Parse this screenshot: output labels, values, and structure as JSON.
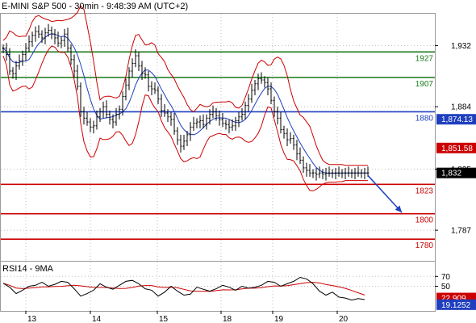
{
  "chart_data": [
    {
      "type": "line",
      "title": "E-MINI S&P 500 - 30min - 9:48:39 AM (UTC+2)",
      "x_tick_labels": [
        "13",
        "14",
        "15",
        "18",
        "19",
        "20"
      ],
      "y_tick_labels": [
        "1,932",
        "1,884",
        "1,835",
        "1,787"
      ],
      "ylim": [
        1763,
        1957
      ],
      "series": [
        {
          "role": "price",
          "color": "#000000",
          "x": [
            0,
            4,
            8,
            12,
            16,
            20,
            24,
            28,
            32,
            36,
            40,
            44,
            48,
            52,
            56,
            60,
            64,
            68,
            72,
            76,
            80,
            84,
            88,
            92,
            96,
            100,
            104,
            108,
            112,
            116,
            120,
            124,
            128,
            132,
            136,
            140,
            144,
            148,
            152,
            156,
            160,
            164,
            168,
            172,
            176,
            180,
            184,
            188,
            192,
            196,
            200,
            204,
            208,
            212,
            216,
            220,
            224,
            228,
            232,
            236,
            240,
            244,
            248,
            252,
            256,
            260,
            264,
            268,
            272,
            276,
            280,
            284,
            288,
            292,
            296,
            300,
            304,
            308,
            312,
            316,
            320,
            324,
            328,
            332,
            336,
            340,
            344,
            348,
            352,
            356,
            360,
            364,
            368,
            372,
            376,
            380,
            384,
            388,
            392,
            396,
            400,
            404,
            408,
            412,
            416,
            420,
            424,
            428,
            432,
            436,
            440,
            444,
            448,
            452
          ],
          "values": [
            1930,
            1925,
            1912,
            1910,
            1916,
            1920,
            1925,
            1930,
            1935,
            1940,
            1943,
            1941,
            1938,
            1942,
            1944,
            1941,
            1938,
            1934,
            1936,
            1941,
            1930,
            1921,
            1912,
            1900,
            1880,
            1875,
            1872,
            1868,
            1869,
            1876,
            1880,
            1884,
            1878,
            1874,
            1872,
            1878,
            1882,
            1892,
            1901,
            1912,
            1918,
            1924,
            1916,
            1910,
            1909,
            1900,
            1898,
            1897,
            1890,
            1881,
            1879,
            1876,
            1874,
            1865,
            1858,
            1853,
            1857,
            1862,
            1868,
            1871,
            1872,
            1873,
            1870,
            1875,
            1878,
            1880,
            1877,
            1874,
            1871,
            1870,
            1868,
            1869,
            1873,
            1876,
            1878,
            1885,
            1890,
            1897,
            1902,
            1906,
            1905,
            1903,
            1898,
            1889,
            1880,
            1875,
            1866,
            1863,
            1858,
            1859,
            1854,
            1847,
            1842,
            1836,
            1834,
            1832,
            1832,
            1831,
            1832,
            1831,
            1832,
            1832,
            1832,
            1832,
            1832,
            1832,
            1832,
            1832,
            1832,
            1832,
            1832,
            1832,
            1832,
            1832
          ]
        },
        {
          "role": "upper-bollinger-band",
          "color": "#cc0000"
        },
        {
          "role": "lower-bollinger-band",
          "color": "#cc0000"
        },
        {
          "role": "moving-average",
          "color": "#1f3fbf"
        }
      ],
      "levels": [
        {
          "label": "1927",
          "value": 1927,
          "color": "#1a7a1a"
        },
        {
          "label": "1907",
          "value": 1907,
          "color": "#1a7a1a"
        },
        {
          "label": "1880",
          "value": 1880,
          "color": "#1f3fbf"
        },
        {
          "label": "1823",
          "value": 1823,
          "color": "#cc0000"
        },
        {
          "label": "1800",
          "value": 1800,
          "color": "#cc0000"
        },
        {
          "label": "1780",
          "value": 1780,
          "color": "#cc0000"
        }
      ],
      "price_tags": [
        {
          "label": "1,874.13",
          "value": 1874.13,
          "color": "#1f3fbf"
        },
        {
          "label": "1,851.58",
          "value": 1851.58,
          "color": "#cc0000"
        },
        {
          "label": "1,832",
          "value": 1832,
          "color": "#000000"
        }
      ],
      "arrow": {
        "color": "#1f3fbf",
        "from": {
          "x": 452,
          "y": 1830
        },
        "to": {
          "x": 498,
          "y": 1801
        }
      }
    },
    {
      "type": "line",
      "title": "RSI14 - 9MA",
      "y_tick_labels": [
        "70",
        "50"
      ],
      "ylim": [
        0,
        100
      ],
      "series": [
        {
          "role": "rsi",
          "color": "#000000",
          "x": [
            0,
            8,
            16,
            24,
            32,
            40,
            48,
            56,
            64,
            72,
            80,
            88,
            96,
            104,
            112,
            120,
            128,
            136,
            144,
            152,
            160,
            168,
            176,
            184,
            192,
            200,
            208,
            216,
            224,
            232,
            240,
            248,
            256,
            264,
            272,
            280,
            288,
            296,
            304,
            312,
            320,
            328,
            336,
            344,
            352,
            360,
            368,
            376,
            384,
            392,
            400,
            408,
            416,
            424,
            432,
            440,
            448
          ],
          "values": [
            56,
            48,
            35,
            42,
            50,
            52,
            58,
            50,
            54,
            60,
            58,
            45,
            30,
            35,
            42,
            55,
            48,
            44,
            52,
            60,
            62,
            55,
            45,
            42,
            30,
            38,
            50,
            40,
            32,
            34,
            48,
            44,
            40,
            45,
            52,
            48,
            42,
            50,
            46,
            48,
            52,
            60,
            58,
            50,
            55,
            60,
            68,
            65,
            55,
            40,
            32,
            38,
            28,
            26,
            22,
            25,
            23
          ]
        },
        {
          "role": "rsi-ma",
          "color": "#cc0000"
        }
      ],
      "price_tags": [
        {
          "label": "22.909",
          "value": 22.909,
          "color": "#cc0000"
        },
        {
          "label": "19.1252",
          "value": 19.1252,
          "color": "#1f3fbf"
        }
      ]
    }
  ]
}
